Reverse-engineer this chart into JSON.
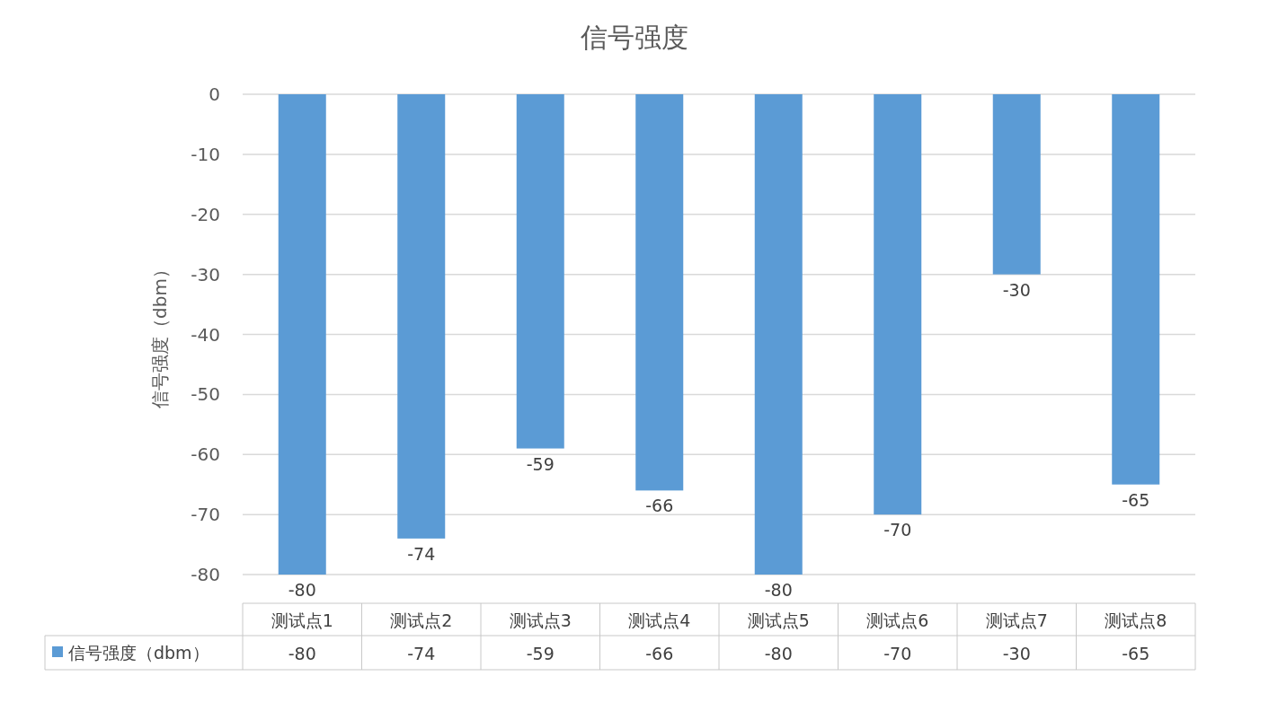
{
  "chart_data": {
    "type": "bar",
    "title": "信号强度",
    "ylabel": "信号强度（dbm）",
    "categories": [
      "测试点1",
      "测试点2",
      "测试点3",
      "测试点4",
      "测试点5",
      "测试点6",
      "测试点7",
      "测试点8"
    ],
    "series": [
      {
        "name": "信号强度（dbm）",
        "color": "#5b9bd5",
        "values": [
          -80,
          -74,
          -59,
          -66,
          -80,
          -70,
          -30,
          -65
        ]
      }
    ],
    "ylim": [
      -80,
      0
    ],
    "yticks": [
      0,
      -10,
      -20,
      -30,
      -40,
      -50,
      -60,
      -70,
      -80
    ],
    "annotations": [
      {
        "text": "-80",
        "x": "测试点1",
        "y": -80
      },
      {
        "text": "-74",
        "x": "测试点2",
        "y": -74
      },
      {
        "text": "-59",
        "x": "测试点3",
        "y": -59
      },
      {
        "text": "-66",
        "x": "测试点4",
        "y": -66
      },
      {
        "text": "-80",
        "x": "测试点5",
        "y": -80
      },
      {
        "text": "-70",
        "x": "测试点6",
        "y": -70
      },
      {
        "text": "-30",
        "x": "测试点7",
        "y": -30
      },
      {
        "text": "-65",
        "x": "测试点8",
        "y": -65
      }
    ],
    "grid": "y",
    "data_labels": true,
    "legend": "bottom left"
  }
}
